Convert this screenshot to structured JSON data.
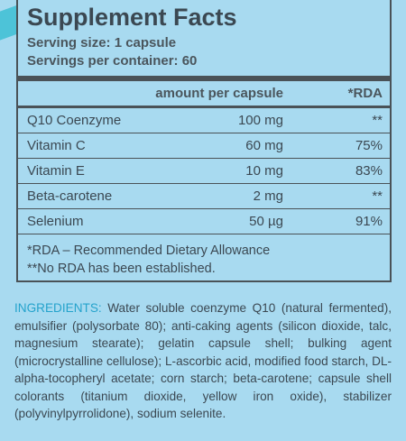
{
  "header": {
    "title": "Supplement Facts",
    "serving_size": "Serving size: 1 capsule",
    "servings": "Servings per container: 60"
  },
  "table": {
    "columns": [
      "amount per capsule",
      "*RDA"
    ],
    "rows": [
      [
        "Q10 Coenzyme",
        "100 mg",
        "**"
      ],
      [
        "Vitamin C",
        "60 mg",
        "75%"
      ],
      [
        "Vitamin E",
        "10 mg",
        "83%"
      ],
      [
        "Beta-carotene",
        "2 mg",
        "**"
      ],
      [
        "Selenium",
        "50 µg",
        "91%"
      ]
    ]
  },
  "footnotes": [
    "*RDA – Recommended Dietary Allowance",
    "**No RDA has been established."
  ],
  "ingredients": {
    "label": "INGREDIENTS:",
    "text": "Water soluble coenzyme Q10 (natural fermented), emulsifier (polysorbate 80); anti-caking agents (silicon dioxide, talc, magnesium stearate); gelatin capsule shell; bulking agent (microcrystalline cellulose); L-ascorbic acid, modified food starch, DL-alpha-tocopheryl acetate; corn starch; beta-carotene; capsule shell colorants (titanium dioxide, yellow iron oxide), stabilizer (polyvinylpyrroli­done), sodium selenite."
  }
}
